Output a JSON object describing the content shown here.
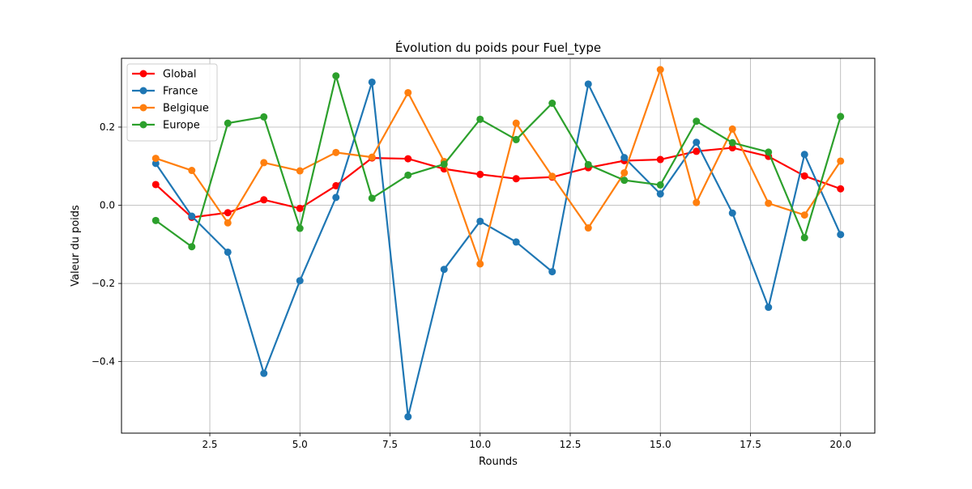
{
  "chart_data": {
    "type": "line",
    "title": "Évolution du poids pour Fuel_type",
    "xlabel": "Rounds",
    "ylabel": "Valeur du poids",
    "xlim": [
      0.05,
      20.95
    ],
    "ylim": [
      -0.583,
      0.376
    ],
    "xticks": [
      2.5,
      5.0,
      7.5,
      10.0,
      12.5,
      15.0,
      17.5,
      20.0
    ],
    "xtick_labels": [
      "2.5",
      "5.0",
      "7.5",
      "10.0",
      "12.5",
      "15.0",
      "17.5",
      "20.0"
    ],
    "yticks": [
      -0.4,
      -0.2,
      0.0,
      0.2
    ],
    "ytick_labels": [
      "−0.4",
      "−0.2",
      "0.0",
      "0.2"
    ],
    "grid": true,
    "legend_position": "top-left",
    "x": [
      1,
      2,
      3,
      4,
      5,
      6,
      7,
      8,
      9,
      10,
      11,
      12,
      13,
      14,
      15,
      16,
      17,
      18,
      19,
      20
    ],
    "series": [
      {
        "name": "Global",
        "color": "#ff0000",
        "values": [
          0.053,
          -0.031,
          -0.019,
          0.014,
          -0.008,
          0.05,
          0.121,
          0.119,
          0.093,
          0.079,
          0.068,
          0.072,
          0.096,
          0.114,
          0.117,
          0.138,
          0.147,
          0.125,
          0.075,
          0.042
        ]
      },
      {
        "name": "France",
        "color": "#1f77b4",
        "values": [
          0.107,
          -0.028,
          -0.12,
          -0.43,
          -0.193,
          0.02,
          0.315,
          -0.541,
          -0.164,
          -0.041,
          -0.094,
          -0.17,
          0.31,
          0.122,
          0.029,
          0.161,
          -0.02,
          -0.261,
          0.13,
          -0.075
        ]
      },
      {
        "name": "Belgique",
        "color": "#ff7f0e",
        "values": [
          0.12,
          0.089,
          -0.045,
          0.109,
          0.088,
          0.135,
          0.123,
          0.288,
          0.112,
          -0.15,
          0.21,
          0.074,
          -0.058,
          0.083,
          0.347,
          0.007,
          0.195,
          0.005,
          -0.025,
          0.113
        ]
      },
      {
        "name": "Europe",
        "color": "#2ca02c",
        "values": [
          -0.039,
          -0.106,
          0.21,
          0.226,
          -0.059,
          0.331,
          0.018,
          0.077,
          0.105,
          0.22,
          0.168,
          0.261,
          0.104,
          0.064,
          0.052,
          0.215,
          0.16,
          0.136,
          -0.083,
          0.227
        ]
      }
    ]
  }
}
